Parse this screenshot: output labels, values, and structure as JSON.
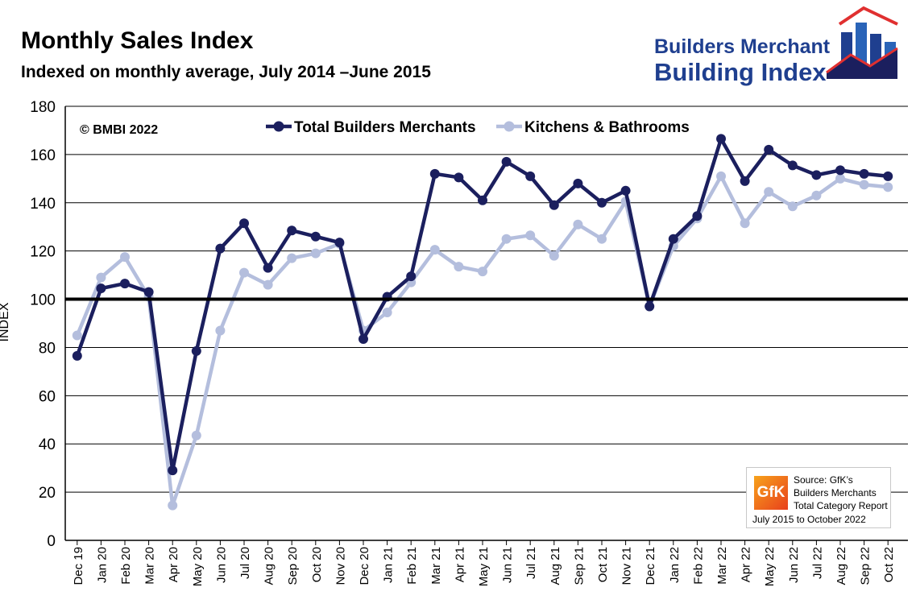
{
  "header": {
    "title": "Monthly Sales Index",
    "subtitle": "Indexed on monthly average, July 2014 –June 2015"
  },
  "logo": {
    "line1": "Builders Merchant",
    "line2": "Building Index",
    "colors": {
      "blue": "#1f3f8f",
      "red": "#e03030",
      "navy": "#1b1f5e"
    }
  },
  "copyright": "© BMBI 2022",
  "source": {
    "badge": "GfK",
    "lines": [
      "Source: GfK’s",
      "Builders Merchants",
      "Total Category Report"
    ],
    "period": "July 2015 to October 2022"
  },
  "chart_data": {
    "type": "line",
    "ylabel": "INDEX",
    "xlabel": "",
    "ylim": [
      0,
      180
    ],
    "yticks": [
      0,
      20,
      40,
      60,
      80,
      100,
      120,
      140,
      160,
      180
    ],
    "reference_line": 100,
    "grid": true,
    "legend_position": "top-center",
    "categories": [
      "Dec 19",
      "Jan 20",
      "Feb 20",
      "Mar 20",
      "Apr 20",
      "May 20",
      "Jun 20",
      "Jul 20",
      "Aug 20",
      "Sep 20",
      "Oct 20",
      "Nov 20",
      "Dec 20",
      "Jan 21",
      "Feb 21",
      "Mar 21",
      "Apr 21",
      "May 21",
      "Jun 21",
      "Jul 21",
      "Aug 21",
      "Sep 21",
      "Oct 21",
      "Nov 21",
      "Dec 21",
      "Jan 22",
      "Feb 22",
      "Mar 22",
      "Apr 22",
      "May 22",
      "Jun 22",
      "Jul 22",
      "Aug 22",
      "Sep 22",
      "Oct 22"
    ],
    "series": [
      {
        "name": "Total Builders Merchants",
        "color": "#1b1f5e",
        "values": [
          76.5,
          104.5,
          106.5,
          103,
          29,
          78.5,
          121,
          131.5,
          113,
          128.5,
          126,
          123.5,
          83.5,
          101,
          109.5,
          152,
          150.5,
          141,
          157,
          151,
          139,
          148,
          140,
          145,
          97,
          125,
          134.5,
          166.5,
          149,
          162,
          155.5,
          151.5,
          153.5,
          152,
          151
        ]
      },
      {
        "name": "Kitchens & Bathrooms",
        "color": "#b4bedd",
        "values": [
          85,
          109,
          117.5,
          101,
          14.5,
          43.5,
          87,
          111,
          106,
          117,
          119,
          123,
          87,
          94.5,
          107,
          120.5,
          113.5,
          111.5,
          125,
          126.5,
          118,
          131,
          125,
          140.5,
          97,
          122,
          133.5,
          151,
          131.5,
          144.5,
          138.5,
          143,
          150,
          147.5,
          146.5
        ]
      }
    ]
  }
}
